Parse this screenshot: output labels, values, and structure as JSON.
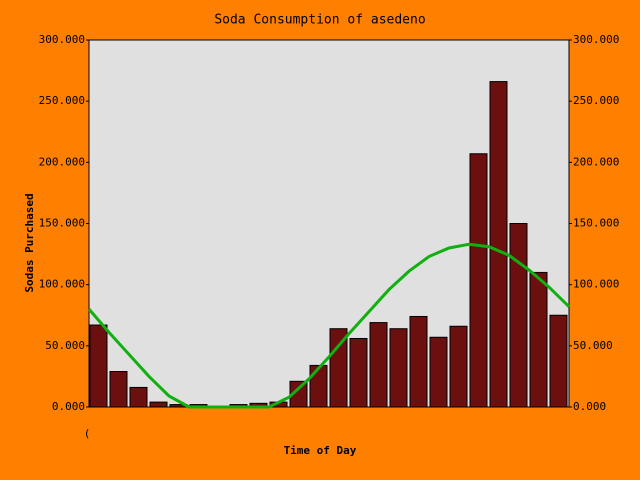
{
  "chart_data": {
    "type": "bar",
    "title": "Soda Consumption of asedeno",
    "x_label": "Time of Day",
    "y_label": "Sodas Purchased",
    "annotation": "(",
    "categories": [
      null,
      null,
      null,
      null,
      null,
      null,
      null,
      null,
      null,
      null,
      null,
      null,
      null,
      null,
      null,
      null,
      null,
      null,
      null,
      null,
      null,
      null,
      null,
      null
    ],
    "values": [
      67,
      29,
      16,
      4,
      2,
      2,
      0,
      2,
      3,
      4,
      21,
      34,
      64,
      56,
      69,
      64,
      74,
      57,
      66,
      207,
      266,
      150,
      110,
      75
    ],
    "color": "#6b0f0f",
    "overlay": {
      "type": "line",
      "color": "#10b010",
      "xlim": [
        0,
        24
      ],
      "x": [
        0,
        1,
        2,
        3,
        4,
        5,
        6,
        7,
        8,
        9,
        10,
        11,
        12,
        13,
        14,
        15,
        16,
        17,
        18,
        19,
        20,
        21,
        22,
        23,
        24
      ],
      "values": [
        80,
        61,
        43,
        25,
        9,
        0,
        0,
        0,
        0,
        0,
        8,
        23,
        41,
        60,
        78,
        96,
        111,
        123,
        130,
        133,
        131,
        124,
        112,
        98,
        82
      ]
    },
    "ylim": [
      0,
      300
    ],
    "yticks": [
      {
        "value": 0,
        "label": "0.000"
      },
      {
        "value": 50,
        "label": "50.000"
      },
      {
        "value": 100,
        "label": "100.000"
      },
      {
        "value": 150,
        "label": "150.000"
      },
      {
        "value": 200,
        "label": "200.000"
      },
      {
        "value": 250,
        "label": "250.000"
      },
      {
        "value": 300,
        "label": "300.000"
      }
    ],
    "y2lim": [
      0,
      300
    ],
    "y2ticks": [
      {
        "value": 0,
        "label": "0.000"
      },
      {
        "value": 50,
        "label": "50.000"
      },
      {
        "value": 100,
        "label": "100.000"
      },
      {
        "value": 150,
        "label": "150.000"
      },
      {
        "value": 200,
        "label": "200.000"
      },
      {
        "value": 250,
        "label": "250.000"
      },
      {
        "value": 300,
        "label": "300.000"
      }
    ]
  }
}
